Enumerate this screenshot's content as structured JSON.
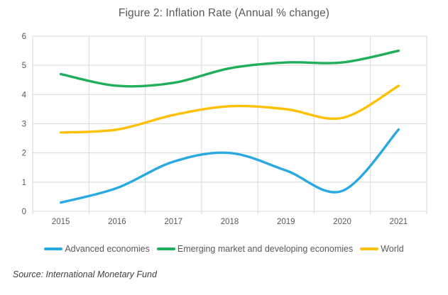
{
  "title": "Figure 2: Inflation Rate (Annual % change)",
  "source_note": "Source: International Monetary Fund",
  "colors": {
    "advanced_blue": "#29A9E1",
    "emerging_green": "#1FAE5A",
    "world_yellow": "#FFC000",
    "gridline": "#D9D9D9",
    "axis_text": "#595959",
    "title_text": "#595959",
    "background": "#FFFFFF"
  },
  "chart_data": {
    "type": "line",
    "title": "Figure 2: Inflation Rate (Annual % change)",
    "categories": [
      "2015",
      "2016",
      "2017",
      "2018",
      "2019",
      "2020",
      "2021"
    ],
    "series": [
      {
        "name": "Advanced economies",
        "color": "#29A9E1",
        "values": [
          0.3,
          0.8,
          1.7,
          2.0,
          1.4,
          0.7,
          2.8
        ]
      },
      {
        "name": "Emerging market and developing economies",
        "color": "#1FAE5A",
        "values": [
          4.7,
          4.3,
          4.4,
          4.9,
          5.1,
          5.1,
          5.5
        ]
      },
      {
        "name": "World",
        "color": "#FFC000",
        "values": [
          2.7,
          2.8,
          3.3,
          3.6,
          3.5,
          3.2,
          4.3
        ]
      }
    ],
    "xlabel": "",
    "ylabel": "",
    "ylim": [
      0,
      6
    ],
    "yticks": [
      0,
      1,
      2,
      3,
      4,
      5,
      6
    ],
    "grid": true,
    "smooth_lines": true,
    "legend_position": "bottom"
  }
}
